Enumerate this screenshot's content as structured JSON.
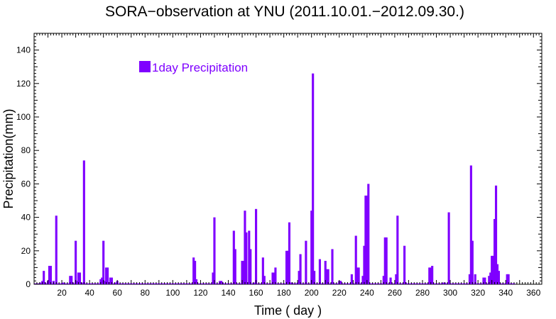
{
  "chart_data": {
    "type": "bar",
    "title": "SORA−observation at YNU (2011.10.01.−2012.09.30.)",
    "xlabel": "Time ( day )",
    "ylabel": "Precipitation(mm)",
    "xlim": [
      0,
      366
    ],
    "ylim": [
      0,
      150
    ],
    "xticks": [
      20,
      40,
      60,
      80,
      100,
      120,
      140,
      160,
      180,
      200,
      220,
      240,
      260,
      280,
      300,
      320,
      340,
      360
    ],
    "yticks": [
      0,
      20,
      40,
      60,
      80,
      100,
      120,
      140
    ],
    "legend_position": "top-left",
    "grid": false,
    "color": "#7f00ff",
    "series": [
      {
        "name": "1day Precipitation",
        "values": [
          0.5,
          0.5,
          0.5,
          0.5,
          1,
          2,
          8,
          1,
          0.5,
          2,
          11,
          11,
          0.5,
          2,
          0.5,
          41,
          0.5,
          0.5,
          0.5,
          0.5,
          1,
          0.5,
          0.5,
          0.5,
          0.5,
          5,
          5,
          1,
          0.5,
          26,
          2,
          7,
          7,
          0.5,
          1,
          74,
          0.5,
          0.5,
          0.5,
          0.5,
          0.5,
          0.5,
          0.5,
          0.5,
          0.5,
          0.5,
          0.5,
          3,
          4,
          26,
          2,
          10,
          10,
          0.5,
          4,
          4,
          0.5,
          0.5,
          1,
          2,
          0.5,
          0.5,
          0.5,
          0.5,
          0.5,
          0.5,
          0.5,
          0.5,
          0.5,
          0.5,
          0.5,
          0.5,
          0.5,
          0.5,
          0.5,
          0.5,
          0.5,
          0.5,
          0.5,
          0.5,
          0.5,
          0.5,
          0.5,
          0.5,
          0.5,
          0.5,
          0.5,
          0.5,
          0.5,
          0.5,
          0.5,
          0.5,
          0.5,
          0.5,
          0.5,
          0.5,
          0.5,
          0.5,
          0.5,
          0.5,
          0.5,
          0.5,
          0.5,
          0.5,
          0.5,
          0.5,
          0.5,
          0.5,
          0.5,
          0.5,
          0.5,
          0.5,
          0.5,
          0.5,
          16,
          14,
          3,
          0.5,
          0.5,
          0.5,
          0.5,
          0.5,
          0.5,
          0.5,
          0.5,
          0.5,
          0.5,
          0.5,
          7,
          40,
          0.5,
          0.5,
          0.5,
          2,
          2,
          1,
          0.5,
          0.5,
          0.5,
          0.5,
          0.5,
          0.5,
          0.5,
          32,
          21,
          0.5,
          0.5,
          0.5,
          0.5,
          14,
          14,
          44,
          31,
          0.5,
          32,
          21,
          0.5,
          0.5,
          1,
          45,
          0.5,
          0.5,
          0.5,
          0.5,
          16,
          5,
          0.5,
          0.5,
          0.5,
          0.5,
          0.5,
          7,
          7,
          10,
          0.5,
          0.5,
          0.5,
          0.5,
          0.5,
          0.5,
          0.5,
          20,
          20,
          37,
          1,
          1,
          0.5,
          0.5,
          0.5,
          1,
          8,
          18,
          0.5,
          0.5,
          0.5,
          26,
          0.5,
          0.5,
          0.5,
          44,
          126,
          8,
          0.5,
          0.5,
          0.5,
          15,
          0.5,
          0.5,
          0.5,
          14,
          9,
          9,
          0.5,
          0.5,
          21,
          0.5,
          0.5,
          0.5,
          0.5,
          2,
          2,
          0.5,
          0.5,
          0.5,
          0.5,
          0.5,
          0.5,
          0.5,
          6,
          0.5,
          0.5,
          29,
          10,
          10,
          0.5,
          0.5,
          5,
          23,
          53,
          53,
          60,
          0.5,
          0.5,
          0.5,
          0.5,
          0.5,
          0.5,
          0.5,
          0.5,
          0.5,
          0.5,
          5,
          28,
          28,
          0.5,
          0.5,
          4,
          0.5,
          0.5,
          0.5,
          6,
          41,
          0.5,
          0.5,
          0.5,
          0.5,
          23,
          1,
          0.5,
          0.5,
          0.5,
          0.5,
          0.5,
          0.5,
          0.5,
          0.5,
          0.5,
          0.5,
          0.5,
          0.5,
          0.5,
          0.5,
          0.5,
          0.5,
          10,
          10,
          11,
          0.5,
          0.5,
          0.5,
          0.5,
          0.5,
          0.5,
          0.5,
          1,
          1,
          0.5,
          0.5,
          43,
          0.5,
          0.5,
          0.5,
          0.5,
          0.5,
          0.5,
          0.5,
          0.5,
          0.5,
          0.5,
          0.5,
          0.5,
          0.5,
          0.5,
          6,
          71,
          26,
          0.5,
          6,
          0.5,
          0.5,
          0.5,
          0.5,
          0.5,
          4,
          4,
          0.5,
          0.5,
          5,
          7,
          17,
          17,
          39,
          59,
          12,
          8,
          0.5,
          0.5,
          0.5,
          0.5,
          0.5,
          6,
          6,
          0.5,
          0.5,
          0.5,
          0.5
        ]
      }
    ]
  }
}
